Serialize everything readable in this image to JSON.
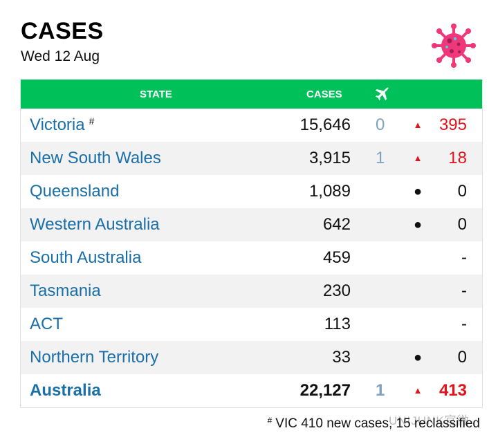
{
  "header": {
    "title": "CASES",
    "date": "Wed 12 Aug"
  },
  "icons": {
    "virus": "virus-icon",
    "plane": "plane-icon"
  },
  "colors": {
    "header_green": "#00c05a",
    "state_blue": "#1a6fa8",
    "increase_red": "#e3131b",
    "overseas_blue": "#7fa0bd"
  },
  "table": {
    "columns": {
      "state": "STATE",
      "cases": "CASES"
    },
    "rows": [
      {
        "state": "Victoria",
        "note": "#",
        "cases": "15,646",
        "overseas": "0",
        "change_icon": "▲",
        "change": "395"
      },
      {
        "state": "New South Wales",
        "note": "",
        "cases": "3,915",
        "overseas": "1",
        "change_icon": "▲",
        "change": "18"
      },
      {
        "state": "Queensland",
        "note": "",
        "cases": "1,089",
        "overseas": "",
        "change_icon": "●",
        "change": "0"
      },
      {
        "state": "Western Australia",
        "note": "",
        "cases": "642",
        "overseas": "",
        "change_icon": "●",
        "change": "0"
      },
      {
        "state": "South Australia",
        "note": "",
        "cases": "459",
        "overseas": "",
        "change_icon": "",
        "change": "-"
      },
      {
        "state": "Tasmania",
        "note": "",
        "cases": "230",
        "overseas": "",
        "change_icon": "",
        "change": "-"
      },
      {
        "state": "ACT",
        "note": "",
        "cases": "113",
        "overseas": "",
        "change_icon": "",
        "change": "-"
      },
      {
        "state": "Northern Territory",
        "note": "",
        "cases": "33",
        "overseas": "",
        "change_icon": "●",
        "change": "0"
      }
    ],
    "total": {
      "state": "Australia",
      "cases": "22,127",
      "overseas": "1",
      "change_icon": "▲",
      "change": "413"
    }
  },
  "footnote": {
    "marker": "#",
    "text": "VIC 410 new cases, 15 reclassified"
  },
  "watermark": "UNIJUNK官微"
}
